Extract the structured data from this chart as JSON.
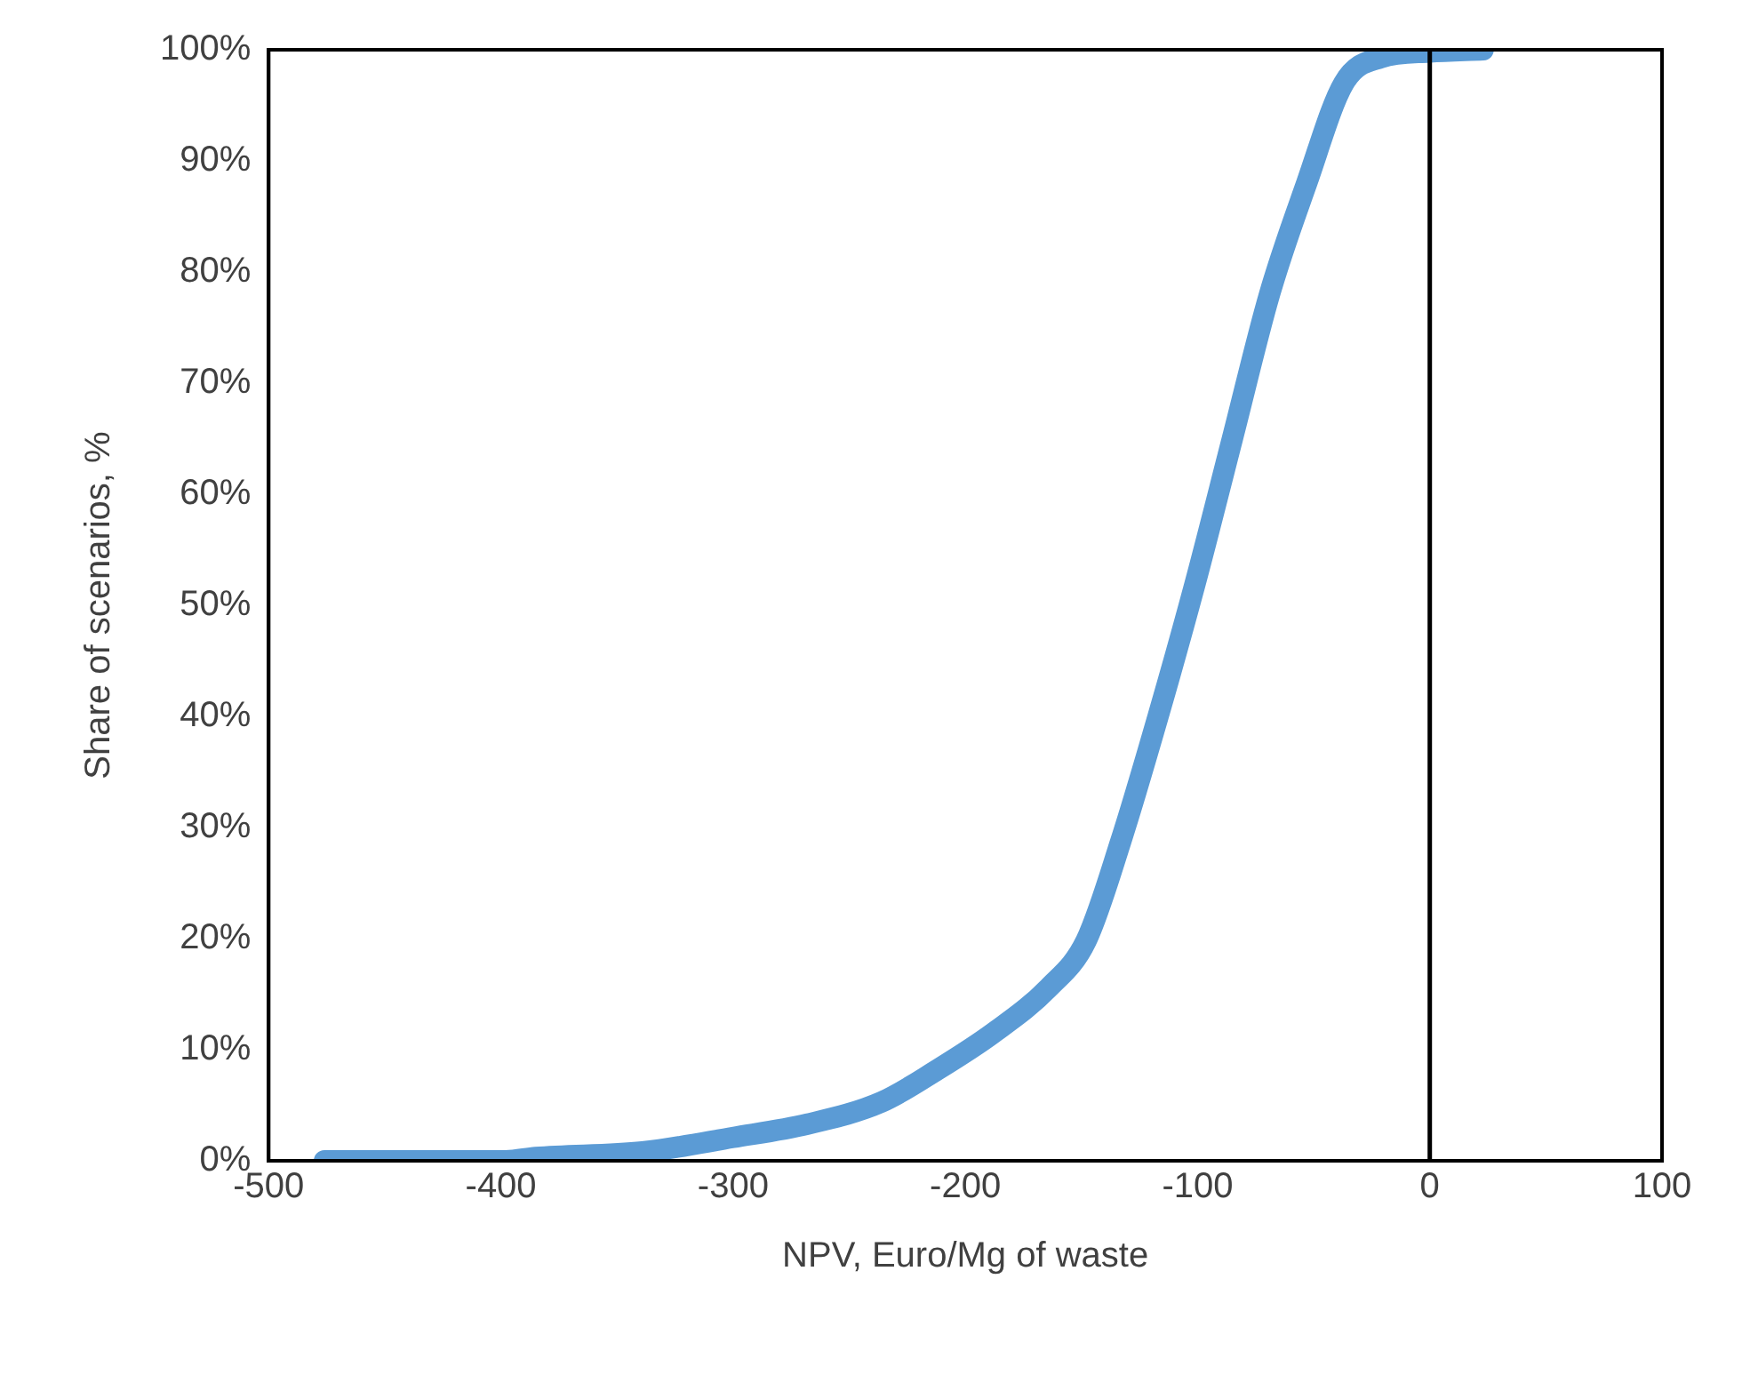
{
  "chart_data": {
    "type": "line",
    "xlabel": "NPV, Euro/Mg of waste",
    "ylabel": "Share of scenarios, %",
    "x": [
      -476,
      -465,
      -455,
      -440,
      -425,
      -410,
      -398,
      -385,
      -339,
      -300,
      -268,
      -236,
      -212,
      -188,
      -164,
      -148,
      -133,
      -117,
      -101,
      -85,
      -69,
      -53,
      -37,
      -21,
      0,
      23
    ],
    "series": [
      {
        "color": "#5b9bd5",
        "values": [
          0,
          0,
          0,
          0,
          0,
          0,
          0,
          0.3,
          0.8,
          2.1,
          3.3,
          5.3,
          8.2,
          11.5,
          15.6,
          19.8,
          28.8,
          40,
          52,
          65,
          78,
          88,
          97,
          99.3,
          99.8,
          100
        ]
      }
    ],
    "xlim": [
      -500,
      100
    ],
    "xticks": [
      -500,
      -400,
      -300,
      -200,
      -100,
      0,
      100
    ],
    "ylim": [
      0,
      100
    ],
    "yticks": [
      {
        "value": 0,
        "label": "0%"
      },
      {
        "value": 10,
        "label": "10%"
      },
      {
        "value": 20,
        "label": "20%"
      },
      {
        "value": 30,
        "label": "30%"
      },
      {
        "value": 40,
        "label": "40%"
      },
      {
        "value": 50,
        "label": "50%"
      },
      {
        "value": 60,
        "label": "60%"
      },
      {
        "value": 70,
        "label": "70%"
      },
      {
        "value": 80,
        "label": "80%"
      },
      {
        "value": 90,
        "label": "90%"
      },
      {
        "value": 100,
        "label": "100%"
      }
    ],
    "ref_lines": [
      {
        "axis": "x",
        "value": 0,
        "color": "#000000"
      }
    ],
    "grid": false,
    "legend": false,
    "marker": "none",
    "line_style": "solid"
  }
}
